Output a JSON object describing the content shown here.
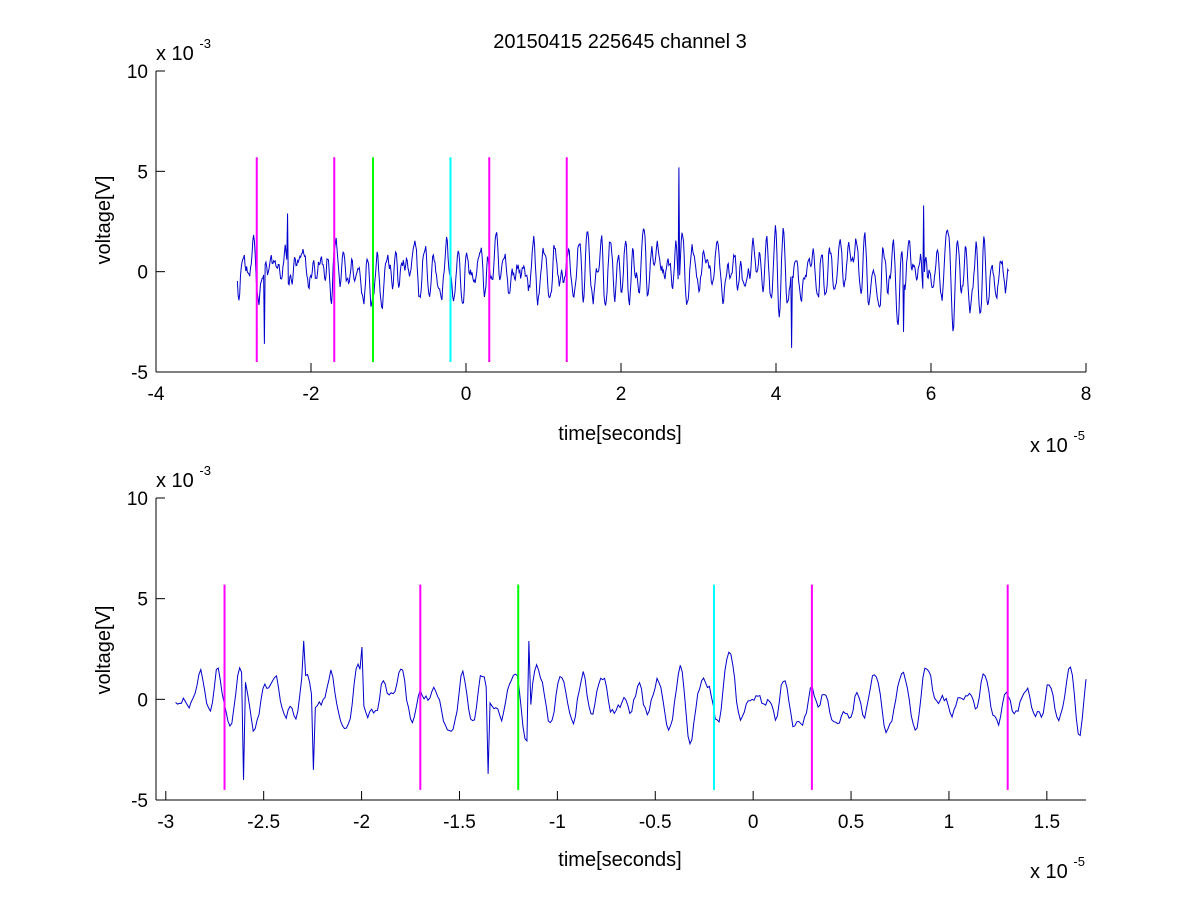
{
  "chart_data": [
    {
      "type": "line",
      "title": "20150415 225645 channel 3",
      "xlabel": "time[seconds]",
      "ylabel": "voltage[V]",
      "xlim": [
        -4e-05,
        8e-05
      ],
      "ylim": [
        -0.005,
        0.01
      ],
      "x_ticks": [
        -4,
        -2,
        0,
        2,
        4,
        6,
        8
      ],
      "y_ticks": [
        -5,
        0,
        5,
        10
      ],
      "x_multiplier": {
        "base": "x 10",
        "exponent": "-5"
      },
      "y_multiplier": {
        "base": "x 10",
        "exponent": "-3"
      },
      "grid": false,
      "signal": {
        "color": "#0000cc",
        "x_start": -2.95e-05,
        "x_end": 7e-05,
        "points": 1000,
        "range": [
          -0.0038,
          0.0052
        ],
        "features": [
          {
            "x": 2.75e-05,
            "y": 0.0052
          },
          {
            "x": 4.2e-05,
            "y": -0.0038
          },
          {
            "x": -2.6e-05,
            "y": -0.0036
          },
          {
            "x": 5.9e-05,
            "y": 0.0033
          },
          {
            "x": -2.3e-05,
            "y": 0.0029
          },
          {
            "x": 5.65e-05,
            "y": -0.003
          }
        ]
      },
      "markers": [
        {
          "x": -2.7e-05,
          "color": "#ff00ff",
          "y_range": [
            -0.0045,
            0.0057
          ]
        },
        {
          "x": -1.7e-05,
          "color": "#ff00ff",
          "y_range": [
            -0.0045,
            0.0057
          ]
        },
        {
          "x": -1.2e-05,
          "color": "#00ff00",
          "y_range": [
            -0.0045,
            0.0057
          ]
        },
        {
          "x": -2e-06,
          "color": "#00ffff",
          "y_range": [
            -0.0045,
            0.0057
          ]
        },
        {
          "x": 3e-06,
          "color": "#ff00ff",
          "y_range": [
            -0.0045,
            0.0057
          ]
        },
        {
          "x": 1.3e-05,
          "color": "#ff00ff",
          "y_range": [
            -0.0045,
            0.0057
          ]
        }
      ]
    },
    {
      "type": "line",
      "title": "",
      "xlabel": "time[seconds]",
      "ylabel": "voltage[V]",
      "xlim": [
        -3.05e-05,
        1.7e-05
      ],
      "ylim": [
        -0.005,
        0.01
      ],
      "x_ticks": [
        -3,
        -2.5,
        -2,
        -1.5,
        -1,
        -0.5,
        0,
        0.5,
        1,
        1.5
      ],
      "y_ticks": [
        -5,
        0,
        5,
        10
      ],
      "x_multiplier": {
        "base": "x 10",
        "exponent": "-5"
      },
      "y_multiplier": {
        "base": "x 10",
        "exponent": "-3"
      },
      "grid": false,
      "signal": {
        "color": "#0000cc",
        "x_start": -2.95e-05,
        "x_end": 1.7e-05,
        "points": 470,
        "range": [
          -0.004,
          0.003
        ],
        "features": [
          {
            "x": -2.6e-05,
            "y": -0.004
          },
          {
            "x": -2.25e-05,
            "y": -0.0035
          },
          {
            "x": -2.3e-05,
            "y": 0.0029
          },
          {
            "x": -1.35e-05,
            "y": -0.0037
          },
          {
            "x": -1.15e-05,
            "y": 0.0029
          },
          {
            "x": -2e-05,
            "y": 0.0026
          }
        ]
      },
      "markers": [
        {
          "x": -2.7e-05,
          "color": "#ff00ff",
          "y_range": [
            -0.0045,
            0.0057
          ]
        },
        {
          "x": -1.7e-05,
          "color": "#ff00ff",
          "y_range": [
            -0.0045,
            0.0057
          ]
        },
        {
          "x": -1.2e-05,
          "color": "#00ff00",
          "y_range": [
            -0.0045,
            0.0057
          ]
        },
        {
          "x": -2e-06,
          "color": "#00ffff",
          "y_range": [
            -0.0045,
            0.0057
          ]
        },
        {
          "x": 3e-06,
          "color": "#ff00ff",
          "y_range": [
            -0.0045,
            0.0057
          ]
        },
        {
          "x": 1.3e-05,
          "color": "#ff00ff",
          "y_range": [
            -0.0045,
            0.0057
          ]
        }
      ]
    }
  ]
}
